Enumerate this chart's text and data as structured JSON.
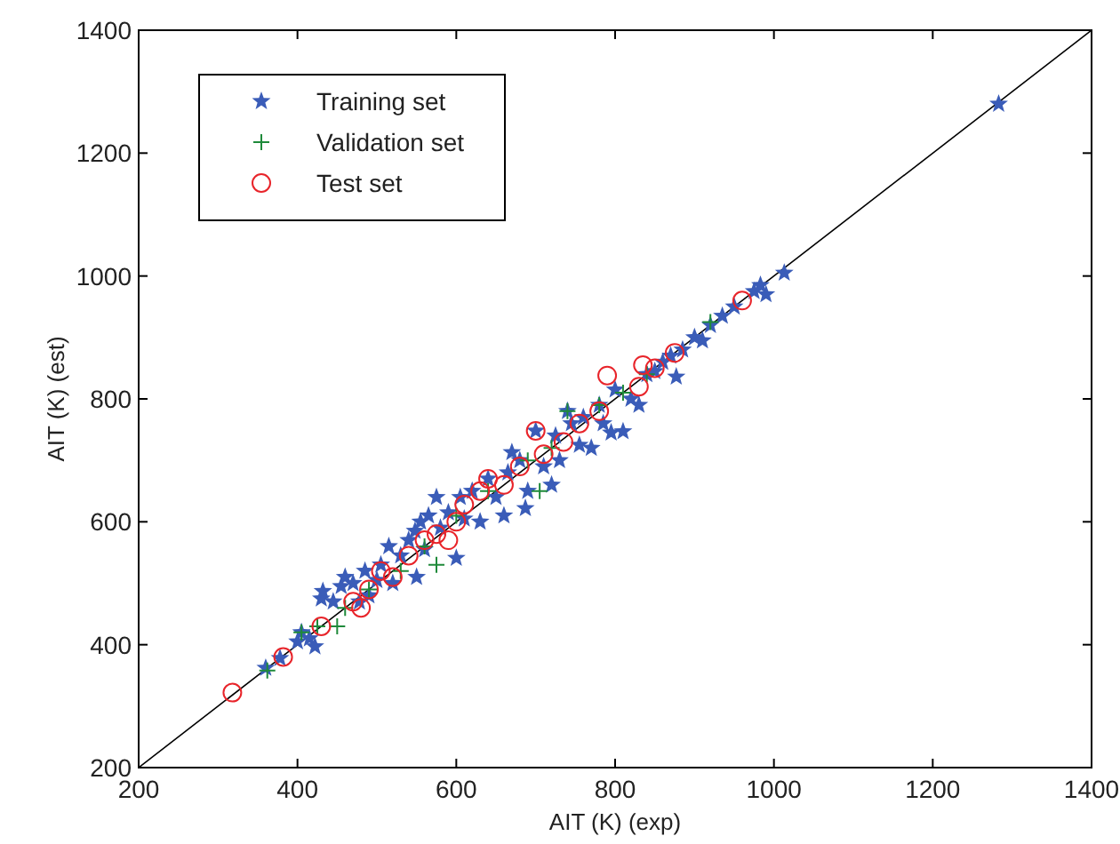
{
  "chart_data": {
    "type": "scatter",
    "xlabel": "AIT (K) (exp)",
    "ylabel": "AIT (K) (est)",
    "xlim": [
      200,
      1400
    ],
    "ylim": [
      200,
      1400
    ],
    "xticks": [
      200,
      400,
      600,
      800,
      1000,
      1200,
      1400
    ],
    "yticks": [
      200,
      400,
      600,
      800,
      1000,
      1200,
      1400
    ],
    "grid": false,
    "legend": "top left",
    "series": [
      {
        "type": "line",
        "color": "#000000",
        "marker": "none",
        "line_style": "solid",
        "x": [
          200,
          1400
        ],
        "values": [
          200,
          1400
        ]
      },
      {
        "name": "Training set",
        "color": "#3a5cb8",
        "marker": "star",
        "x": [
          360,
          378,
          400,
          405,
          415,
          422,
          430,
          432,
          445,
          455,
          460,
          470,
          478,
          485,
          490,
          500,
          505,
          515,
          520,
          530,
          540,
          548,
          550,
          555,
          560,
          565,
          575,
          580,
          590,
          600,
          605,
          610,
          620,
          630,
          640,
          650,
          660,
          665,
          670,
          680,
          687,
          690,
          700,
          710,
          720,
          725,
          730,
          740,
          745,
          755,
          760,
          770,
          780,
          785,
          795,
          800,
          810,
          820,
          830,
          840,
          850,
          860,
          870,
          877,
          885,
          900,
          910,
          920,
          935,
          950,
          975,
          983,
          990,
          1013,
          1283
        ],
        "values": [
          362,
          378,
          405,
          420,
          410,
          397,
          475,
          487,
          470,
          495,
          510,
          500,
          470,
          520,
          480,
          505,
          530,
          560,
          500,
          545,
          570,
          585,
          510,
          600,
          555,
          610,
          640,
          590,
          615,
          541,
          640,
          605,
          650,
          600,
          670,
          640,
          610,
          680,
          713,
          700,
          622,
          650,
          748,
          690,
          660,
          740,
          700,
          780,
          760,
          725,
          770,
          720,
          790,
          760,
          745,
          815,
          747,
          800,
          790,
          840,
          845,
          860,
          870,
          836,
          880,
          900,
          895,
          920,
          935,
          950,
          975,
          985,
          970,
          1005,
          1280
        ]
      },
      {
        "name": "Validation set",
        "color": "#1f8a3a",
        "marker": "cross",
        "x": [
          362,
          405,
          425,
          450,
          460,
          490,
          530,
          560,
          575,
          600,
          640,
          690,
          705,
          720,
          740,
          780,
          810,
          840,
          920
        ],
        "values": [
          358,
          420,
          430,
          430,
          460,
          490,
          520,
          560,
          530,
          610,
          650,
          700,
          650,
          720,
          780,
          790,
          810,
          840,
          925
        ]
      },
      {
        "name": "Test set",
        "color": "#e8242a",
        "marker": "circle",
        "x": [
          318,
          382,
          430,
          470,
          480,
          490,
          505,
          520,
          540,
          560,
          575,
          590,
          600,
          610,
          630,
          640,
          660,
          680,
          700,
          710,
          735,
          755,
          780,
          790,
          830,
          835,
          850,
          875,
          960
        ],
        "values": [
          322,
          380,
          430,
          470,
          460,
          490,
          520,
          510,
          545,
          570,
          580,
          570,
          600,
          628,
          650,
          670,
          660,
          690,
          748,
          710,
          730,
          760,
          780,
          838,
          820,
          855,
          850,
          875,
          960
        ]
      }
    ]
  }
}
